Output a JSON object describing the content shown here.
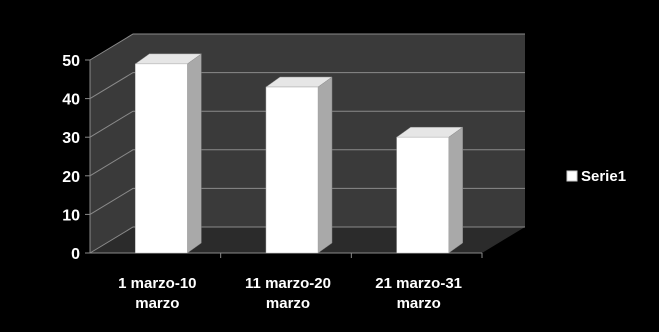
{
  "chart_data": {
    "type": "bar",
    "style": "3d-column",
    "categories": [
      [
        "1 marzo-10",
        "marzo"
      ],
      [
        "11 marzo-20",
        "marzo"
      ],
      [
        "21 marzo-31",
        "marzo"
      ]
    ],
    "series": [
      {
        "name": "Serie1",
        "values": [
          49,
          43,
          30
        ]
      }
    ],
    "ylim": [
      0,
      50
    ],
    "yticks": [
      0,
      10,
      20,
      30,
      40,
      50
    ],
    "grid": true,
    "legend": "right",
    "colors": {
      "background": "#000000",
      "wall": "#3a3a3a",
      "floor": "#2b2b2b",
      "gridline": "#8a8a8a",
      "bar_front": "#ffffff",
      "bar_side": "#a9a9a9",
      "bar_top": "#e6e6e6",
      "text": "#ffffff"
    }
  }
}
